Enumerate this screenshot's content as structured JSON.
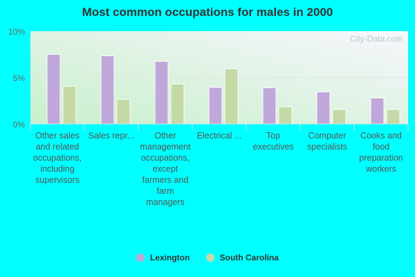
{
  "chart_data": {
    "type": "bar",
    "title": "Most common occupations for males in 2000",
    "categories": [
      "Other sales and related occupations, including supervisors",
      "Sales repr...",
      "Other management occupations, except farmers and farm managers",
      "Electrical ...",
      "Top executives",
      "Computer specialists",
      "Cooks and food preparation workers"
    ],
    "series": [
      {
        "name": "Lexington",
        "color": "#bfa8d9",
        "values": [
          7.5,
          7.35,
          6.75,
          3.95,
          3.9,
          3.45,
          2.8
        ]
      },
      {
        "name": "South Carolina",
        "color": "#c4d9a6",
        "values": [
          4.05,
          2.65,
          4.3,
          5.95,
          1.85,
          1.55,
          1.55
        ]
      }
    ],
    "ylim": [
      0,
      10
    ],
    "yticks": [
      "0%",
      "5%",
      "10%"
    ],
    "grid": true,
    "legend": "bottom",
    "watermark": "City-Data.com"
  }
}
